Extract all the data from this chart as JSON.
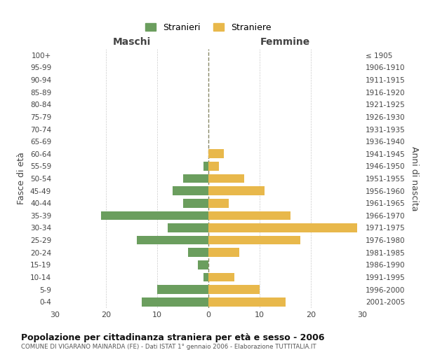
{
  "age_groups": [
    "0-4",
    "5-9",
    "10-14",
    "15-19",
    "20-24",
    "25-29",
    "30-34",
    "35-39",
    "40-44",
    "45-49",
    "50-54",
    "55-59",
    "60-64",
    "65-69",
    "70-74",
    "75-79",
    "80-84",
    "85-89",
    "90-94",
    "95-99",
    "100+"
  ],
  "birth_years": [
    "2001-2005",
    "1996-2000",
    "1991-1995",
    "1986-1990",
    "1981-1985",
    "1976-1980",
    "1971-1975",
    "1966-1970",
    "1961-1965",
    "1956-1960",
    "1951-1955",
    "1946-1950",
    "1941-1945",
    "1936-1940",
    "1931-1935",
    "1926-1930",
    "1921-1925",
    "1916-1920",
    "1911-1915",
    "1906-1910",
    "≤ 1905"
  ],
  "males": [
    13,
    10,
    1,
    2,
    4,
    14,
    8,
    21,
    5,
    7,
    5,
    1,
    0,
    0,
    0,
    0,
    0,
    0,
    0,
    0,
    0
  ],
  "females": [
    15,
    10,
    5,
    0,
    6,
    18,
    29,
    16,
    4,
    11,
    7,
    2,
    3,
    0,
    0,
    0,
    0,
    0,
    0,
    0,
    0
  ],
  "male_color": "#6b9e5e",
  "female_color": "#e8b84b",
  "title": "Popolazione per cittadinanza straniera per età e sesso - 2006",
  "subtitle": "COMUNE DI VIGARANO MAINARDA (FE) - Dati ISTAT 1° gennaio 2006 - Elaborazione TUTTITALIA.IT",
  "label_maschi": "Maschi",
  "label_femmine": "Femmine",
  "ylabel_left": "Fasce di età",
  "ylabel_right": "Anni di nascita",
  "legend_male": "Stranieri",
  "legend_female": "Straniere",
  "xlim": 30,
  "background_color": "#ffffff",
  "grid_color": "#cccccc"
}
